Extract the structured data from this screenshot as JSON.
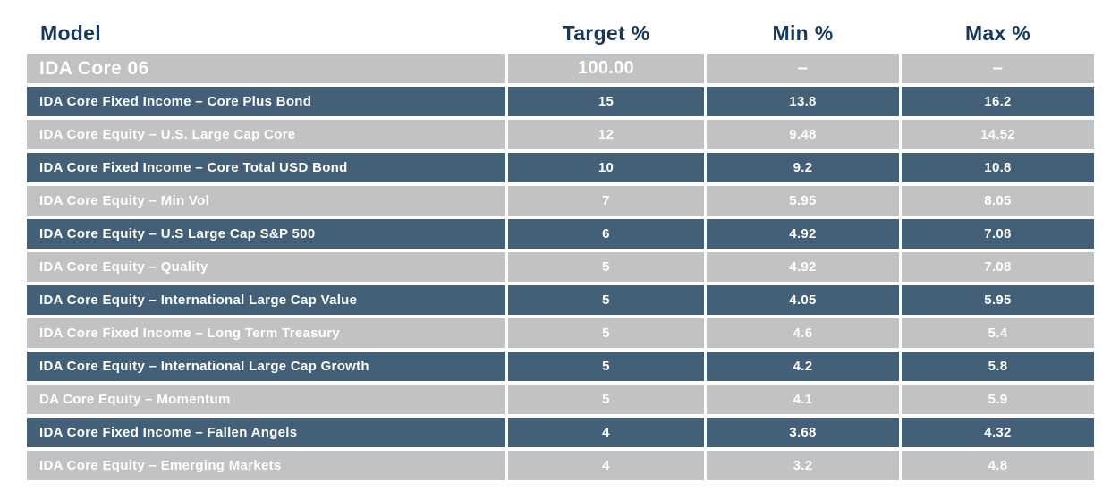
{
  "header": {
    "columns": [
      {
        "label": "Model"
      },
      {
        "label": "Target %"
      },
      {
        "label": "Min %"
      },
      {
        "label": "Max %"
      }
    ]
  },
  "colors": {
    "header_text": "#17395C",
    "dark_row_bg": "#436078",
    "light_row_bg": "#C0C2C4",
    "row_text": "#FFFFFF"
  },
  "chart_data": {
    "type": "table",
    "title": "Model allocation targets",
    "columns": [
      "Model",
      "Target %",
      "Min %",
      "Max %"
    ],
    "rows": [
      [
        "IDA Core 06",
        "100.00",
        "–",
        "–"
      ],
      [
        "IDA Core Fixed Income – Core Plus Bond",
        "15",
        "13.8",
        "16.2"
      ],
      [
        "IDA Core Equity – U.S. Large Cap Core",
        "12",
        "9.48",
        "14.52"
      ],
      [
        "IDA Core Fixed Income – Core Total USD Bond",
        "10",
        "9.2",
        "10.8"
      ],
      [
        "IDA Core Equity – Min Vol",
        "7",
        "5.95",
        "8.05"
      ],
      [
        "IDA Core Equity – U.S Large Cap S&P 500",
        "6",
        "4.92",
        "7.08"
      ],
      [
        "IDA Core Equity – Quality",
        "5",
        "4.92",
        "7.08"
      ],
      [
        "IDA Core Equity – International Large Cap Value",
        "5",
        "4.05",
        "5.95"
      ],
      [
        "IDA Core Fixed Income – Long Term Treasury",
        "5",
        "4.6",
        "5.4"
      ],
      [
        "IDA Core Equity – International Large Cap Growth",
        "5",
        "4.2",
        "5.8"
      ],
      [
        "DA Core Equity – Momentum",
        "5",
        "4.1",
        "5.9"
      ],
      [
        "IDA Core Fixed Income – Fallen Angels",
        "4",
        "3.68",
        "4.32"
      ],
      [
        "IDA Core Equity – Emerging Markets",
        "4",
        "3.2",
        "4.8"
      ]
    ]
  }
}
